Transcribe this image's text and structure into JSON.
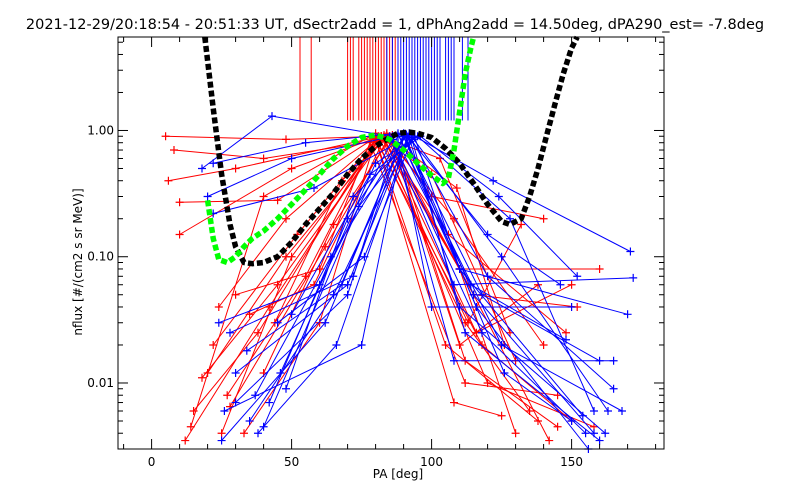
{
  "chart_data": {
    "type": "line",
    "title": "2021-12-29/20:18:54 - 20:51:33 UT, dSectr2add = 1, dPhAng2add = 14.50deg, dPA290_est=  -7.8deg",
    "xlabel": "PA [deg]",
    "ylabel": "nflux [#/(cm2 s sr MeV)]",
    "xlim": [
      -12,
      183
    ],
    "ylim": [
      0.003,
      5.5
    ],
    "yscale": "log",
    "xticks": [
      0,
      50,
      100,
      150
    ],
    "xtick_labels": [
      "0",
      "50",
      "100",
      "150"
    ],
    "yticks": [
      0.01,
      0.1,
      1.0
    ],
    "ytick_labels": [
      "0.01",
      "0.10",
      "1.00"
    ],
    "grid": false,
    "colors": {
      "red": "#ff0000",
      "blue": "#0000ff",
      "black": "#000000",
      "green": "#00ff00"
    },
    "vertical_markers": {
      "y_range": [
        1.2,
        5.5
      ],
      "red_x": [
        53,
        57,
        70,
        71,
        72,
        74,
        75,
        76,
        77,
        78,
        79,
        80,
        81,
        82,
        83,
        84,
        85,
        86,
        87,
        88
      ],
      "blue_x": [
        84,
        86,
        88,
        89,
        90,
        91,
        92,
        93,
        94,
        95,
        96,
        97,
        98,
        99,
        100,
        101,
        102,
        103,
        105,
        106,
        107,
        108,
        111,
        113
      ]
    },
    "series": [
      {
        "color": "red",
        "x": [
          5,
          48,
          82,
          110,
          160
        ],
        "y": [
          0.9,
          0.85,
          0.9,
          0.08,
          0.08
        ]
      },
      {
        "color": "red",
        "x": [
          8,
          40,
          84,
          115,
          152
        ],
        "y": [
          0.7,
          0.6,
          0.85,
          0.05,
          0.04
        ]
      },
      {
        "color": "red",
        "x": [
          6,
          30,
          82,
          106,
          148
        ],
        "y": [
          0.4,
          0.5,
          0.9,
          0.15,
          0.025
        ]
      },
      {
        "color": "red",
        "x": [
          10,
          45,
          80,
          112,
          135
        ],
        "y": [
          0.27,
          0.28,
          0.88,
          0.03,
          0.006
        ]
      },
      {
        "color": "red",
        "x": [
          10,
          50,
          83,
          108,
          140
        ],
        "y": [
          0.15,
          0.5,
          0.92,
          0.2,
          0.02
        ]
      },
      {
        "color": "red",
        "x": [
          12,
          42,
          82,
          120,
          158
        ],
        "y": [
          0.0035,
          0.04,
          0.9,
          0.01,
          0.0045
        ]
      },
      {
        "color": "red",
        "x": [
          15,
          38,
          80,
          118,
          150
        ],
        "y": [
          0.006,
          0.025,
          0.85,
          0.02,
          0.005
        ]
      },
      {
        "color": "red",
        "x": [
          20,
          48,
          84,
          115,
          142
        ],
        "y": [
          0.012,
          0.1,
          0.93,
          0.05,
          0.0035
        ]
      },
      {
        "color": "red",
        "x": [
          25,
          50,
          82,
          110,
          130
        ],
        "y": [
          0.004,
          0.1,
          0.9,
          0.08,
          0.004
        ]
      },
      {
        "color": "red",
        "x": [
          27,
          55,
          80,
          105,
          138
        ],
        "y": [
          0.008,
          0.07,
          0.85,
          0.02,
          0.005
        ]
      },
      {
        "color": "red",
        "x": [
          30,
          60,
          78,
          112,
          145
        ],
        "y": [
          0.05,
          0.08,
          0.8,
          0.01,
          0.008
        ]
      },
      {
        "color": "red",
        "x": [
          35,
          58,
          84,
          100,
          140
        ],
        "y": [
          0.035,
          0.06,
          0.95,
          0.3,
          0.2
        ]
      },
      {
        "color": "red",
        "x": [
          22,
          52,
          81,
          113,
          132
        ],
        "y": [
          0.02,
          0.15,
          0.9,
          0.03,
          0.18
        ]
      },
      {
        "color": "red",
        "x": [
          18,
          45,
          83,
          116,
          150
        ],
        "y": [
          0.011,
          0.06,
          0.88,
          0.025,
          0.06
        ]
      },
      {
        "color": "red",
        "x": [
          28,
          62,
          85,
          110,
          138
        ],
        "y": [
          0.0065,
          0.12,
          0.9,
          0.02,
          0.06
        ]
      },
      {
        "color": "red",
        "x": [
          33,
          60,
          80,
          108,
          125
        ],
        "y": [
          0.004,
          0.03,
          0.85,
          0.007,
          0.0055
        ]
      },
      {
        "color": "red",
        "x": [
          40,
          65,
          86,
          112,
          145
        ],
        "y": [
          0.012,
          0.18,
          0.92,
          0.015,
          0.0045
        ]
      },
      {
        "color": "red",
        "x": [
          14,
          40,
          80,
          100,
          130
        ],
        "y": [
          0.0045,
          0.3,
          0.95,
          0.45,
          0.015
        ]
      },
      {
        "color": "red",
        "x": [
          24,
          48,
          82,
          103,
          128
        ],
        "y": [
          0.04,
          0.2,
          0.9,
          0.6,
          0.025
        ]
      },
      {
        "color": "red",
        "x": [
          44,
          68,
          84,
          109,
          126
        ],
        "y": [
          0.03,
          0.4,
          0.9,
          0.35,
          0.02
        ]
      },
      {
        "color": "blue",
        "x": [
          18,
          43,
          85,
          108,
          172
        ],
        "y": [
          0.5,
          1.3,
          0.9,
          0.06,
          0.068
        ]
      },
      {
        "color": "blue",
        "x": [
          22,
          55,
          88,
          110,
          170
        ],
        "y": [
          0.55,
          0.8,
          0.95,
          0.08,
          0.035
        ]
      },
      {
        "color": "blue",
        "x": [
          20,
          50,
          86,
          108,
          165
        ],
        "y": [
          0.3,
          0.6,
          0.9,
          0.015,
          0.015
        ]
      },
      {
        "color": "blue",
        "x": [
          22,
          58,
          88,
          100,
          150
        ],
        "y": [
          0.22,
          0.35,
          0.8,
          0.04,
          0.04
        ]
      },
      {
        "color": "blue",
        "x": [
          25,
          62,
          90,
          118,
          160
        ],
        "y": [
          0.0035,
          0.03,
          0.9,
          0.05,
          0.015
        ]
      },
      {
        "color": "blue",
        "x": [
          30,
          70,
          88,
          125,
          168
        ],
        "y": [
          0.007,
          0.05,
          0.93,
          0.02,
          0.006
        ]
      },
      {
        "color": "blue",
        "x": [
          35,
          65,
          92,
          110,
          162
        ],
        "y": [
          0.005,
          0.05,
          0.88,
          0.04,
          0.004
        ]
      },
      {
        "color": "blue",
        "x": [
          28,
          72,
          90,
          115,
          158
        ],
        "y": [
          0.025,
          0.07,
          0.95,
          0.05,
          0.004
        ]
      },
      {
        "color": "blue",
        "x": [
          24,
          60,
          86,
          118,
          155
        ],
        "y": [
          0.03,
          0.06,
          0.85,
          0.025,
          0.004
        ]
      },
      {
        "color": "blue",
        "x": [
          26,
          75,
          90,
          126,
          150
        ],
        "y": [
          0.006,
          0.02,
          0.9,
          0.012,
          0.005
        ]
      },
      {
        "color": "blue",
        "x": [
          38,
          66,
          92,
          120,
          165
        ],
        "y": [
          0.004,
          0.02,
          0.92,
          0.07,
          0.009
        ]
      },
      {
        "color": "blue",
        "x": [
          40,
          74,
          94,
          122,
          171
        ],
        "y": [
          0.0045,
          0.25,
          0.9,
          0.4,
          0.11
        ]
      },
      {
        "color": "blue",
        "x": [
          30,
          70,
          92,
          125,
          163
        ],
        "y": [
          0.012,
          0.06,
          0.95,
          0.1,
          0.006
        ]
      },
      {
        "color": "blue",
        "x": [
          45,
          76,
          93,
          112,
          160
        ],
        "y": [
          0.03,
          0.1,
          0.85,
          0.025,
          0.0035
        ]
      },
      {
        "color": "blue",
        "x": [
          34,
          68,
          90,
          116,
          156
        ],
        "y": [
          0.018,
          0.06,
          0.9,
          0.04,
          0.003
        ]
      },
      {
        "color": "blue",
        "x": [
          48,
          72,
          94,
          110,
          154
        ],
        "y": [
          0.009,
          0.3,
          0.88,
          0.08,
          0.0055
        ]
      },
      {
        "color": "blue",
        "x": [
          42,
          70,
          88,
          114,
          148
        ],
        "y": [
          0.007,
          0.2,
          0.8,
          0.06,
          0.022
        ]
      },
      {
        "color": "blue",
        "x": [
          50,
          78,
          96,
          124,
          152
        ],
        "y": [
          0.035,
          0.45,
          0.9,
          0.3,
          0.07
        ]
      },
      {
        "color": "blue",
        "x": [
          37,
          64,
          91,
          120,
          146
        ],
        "y": [
          0.008,
          0.1,
          0.93,
          0.15,
          0.06
        ]
      },
      {
        "color": "blue",
        "x": [
          46,
          80,
          95,
          128,
          158
        ],
        "y": [
          0.012,
          0.55,
          0.9,
          0.2,
          0.006
        ]
      }
    ],
    "fits": [
      {
        "color": "black",
        "style": "dashed",
        "x": [
          19,
          22,
          25,
          28,
          30,
          33,
          36,
          40,
          45,
          50,
          55,
          60,
          65,
          70,
          75,
          80,
          85,
          88,
          92,
          95,
          100,
          105,
          110,
          115,
          120,
          125,
          128,
          132,
          135,
          138,
          141,
          144,
          147,
          150,
          152
        ],
        "y": [
          5.5,
          1.5,
          0.45,
          0.18,
          0.12,
          0.09,
          0.088,
          0.09,
          0.1,
          0.13,
          0.18,
          0.24,
          0.32,
          0.45,
          0.6,
          0.75,
          0.88,
          0.95,
          0.97,
          0.95,
          0.88,
          0.72,
          0.55,
          0.38,
          0.26,
          0.19,
          0.18,
          0.2,
          0.3,
          0.5,
          0.9,
          1.6,
          2.8,
          4.5,
          5.5
        ]
      },
      {
        "color": "green",
        "style": "dashed",
        "x": [
          20,
          22,
          24,
          27,
          30,
          33,
          36,
          40,
          45,
          50,
          55,
          60,
          65,
          70,
          75,
          80,
          85,
          90,
          95,
          100,
          104,
          106,
          108,
          110,
          112,
          114,
          115
        ],
        "y": [
          0.28,
          0.14,
          0.095,
          0.09,
          0.1,
          0.12,
          0.14,
          0.16,
          0.2,
          0.26,
          0.34,
          0.45,
          0.6,
          0.75,
          0.88,
          0.92,
          0.85,
          0.7,
          0.55,
          0.44,
          0.38,
          0.42,
          0.7,
          1.4,
          2.8,
          4.5,
          5.5
        ]
      }
    ]
  }
}
